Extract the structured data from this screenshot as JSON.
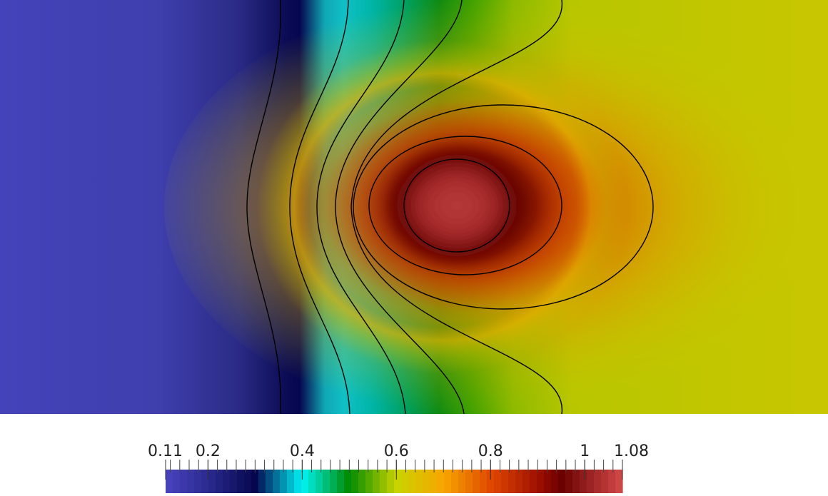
{
  "chart_data": {
    "type": "heatmap",
    "title": "",
    "xlabel": "",
    "ylabel": "",
    "colorbar": {
      "range": [
        0.11,
        1.08
      ],
      "tick_labels": [
        "0.11",
        "0.2",
        "0.4",
        "0.6",
        "0.8",
        "1",
        "1.08"
      ],
      "tick_values": [
        0.11,
        0.2,
        0.4,
        0.6,
        0.8,
        1.0,
        1.08
      ],
      "minor_tick_step": 0.02,
      "colormap": "rainbow-desaturated",
      "colormap_stops": [
        {
          "value": 0.11,
          "color": "#4a44c0"
        },
        {
          "value": 0.2,
          "color": "#2a2a8e"
        },
        {
          "value": 0.3,
          "color": "#06064f"
        },
        {
          "value": 0.4,
          "color": "#00f4f4"
        },
        {
          "value": 0.5,
          "color": "#008a00"
        },
        {
          "value": 0.6,
          "color": "#c8d400"
        },
        {
          "value": 0.7,
          "color": "#f8a600"
        },
        {
          "value": 0.8,
          "color": "#e04800"
        },
        {
          "value": 0.9,
          "color": "#a01000"
        },
        {
          "value": 0.95,
          "color": "#6a0000"
        },
        {
          "value": 1.08,
          "color": "#d34a4a"
        }
      ]
    },
    "field_features": [
      {
        "name": "low-plateau",
        "value": 0.15
      },
      {
        "name": "trough",
        "value": 0.3
      },
      {
        "name": "far-right-plateau",
        "value": 0.63
      },
      {
        "name": "peak-ring",
        "value": 0.95
      },
      {
        "name": "peak-core",
        "value": 1.05
      }
    ],
    "contour_levels": [
      0.25,
      0.45,
      0.53,
      0.6,
      0.66,
      0.75,
      0.9,
      1.0
    ]
  }
}
